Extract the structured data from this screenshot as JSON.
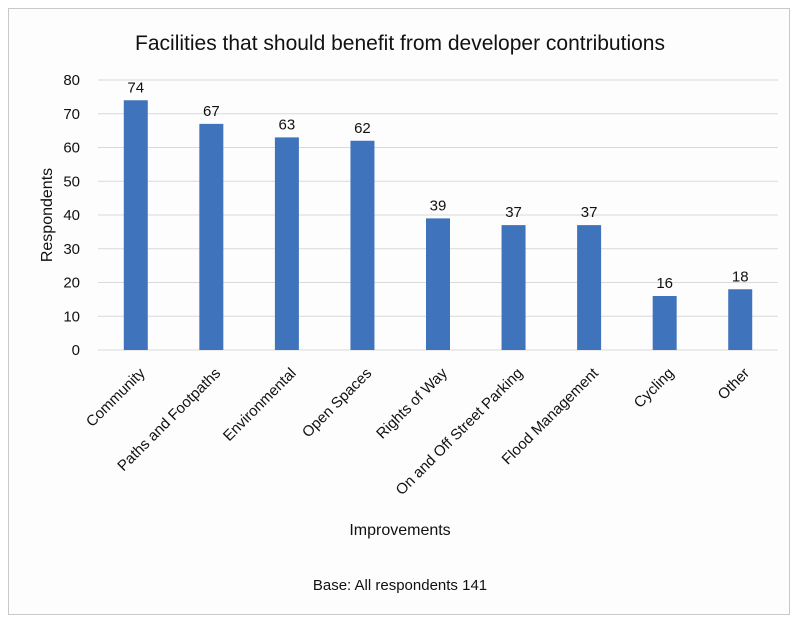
{
  "chart_data": {
    "type": "bar",
    "title": "Facilities that should benefit from developer contributions",
    "xlabel": "Improvements",
    "ylabel": "Respondents",
    "footnote": "Base: All respondents 141",
    "ylim": [
      0,
      80
    ],
    "yticks": [
      0,
      10,
      20,
      30,
      40,
      50,
      60,
      70,
      80
    ],
    "grid": true,
    "categories": [
      "Community",
      "Paths and Footpaths",
      "Environmental",
      "Open Spaces",
      "Rights of Way",
      "On and Off Street Parking",
      "Flood Management",
      "Cycling",
      "Other"
    ],
    "values": [
      74,
      67,
      63,
      62,
      39,
      37,
      37,
      16,
      18
    ],
    "bar_color": "#3f74bd",
    "grid_color": "#d9d9d9"
  }
}
